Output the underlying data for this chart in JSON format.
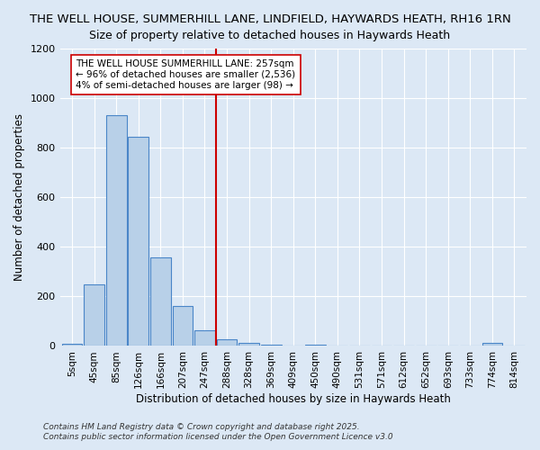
{
  "title": "THE WELL HOUSE, SUMMERHILL LANE, LINDFIELD, HAYWARDS HEATH, RH16 1RN",
  "subtitle": "Size of property relative to detached houses in Haywards Heath",
  "xlabel": "Distribution of detached houses by size in Haywards Heath",
  "ylabel": "Number of detached properties",
  "bin_labels": [
    "5sqm",
    "45sqm",
    "85sqm",
    "126sqm",
    "166sqm",
    "207sqm",
    "247sqm",
    "288sqm",
    "328sqm",
    "369sqm",
    "409sqm",
    "450sqm",
    "490sqm",
    "531sqm",
    "571sqm",
    "612sqm",
    "652sqm",
    "693sqm",
    "733sqm",
    "774sqm",
    "814sqm"
  ],
  "bar_heights": [
    8,
    250,
    930,
    845,
    358,
    160,
    65,
    28,
    13,
    5,
    0,
    5,
    0,
    0,
    0,
    0,
    0,
    0,
    0,
    12,
    0
  ],
  "bar_color": "#b8d0e8",
  "bar_edgecolor": "#4a86c8",
  "vline_x_index": 6,
  "vline_color": "#cc0000",
  "ylim": [
    0,
    1200
  ],
  "yticks": [
    0,
    200,
    400,
    600,
    800,
    1000,
    1200
  ],
  "annotation_text": "THE WELL HOUSE SUMMERHILL LANE: 257sqm\n← 96% of detached houses are smaller (2,536)\n4% of semi-detached houses are larger (98) →",
  "annotation_box_color": "#ffffff",
  "annotation_box_edgecolor": "#cc0000",
  "bg_color": "#dce8f5",
  "grid_color": "#ffffff",
  "footer1": "Contains HM Land Registry data © Crown copyright and database right 2025.",
  "footer2": "Contains public sector information licensed under the Open Government Licence v3.0"
}
